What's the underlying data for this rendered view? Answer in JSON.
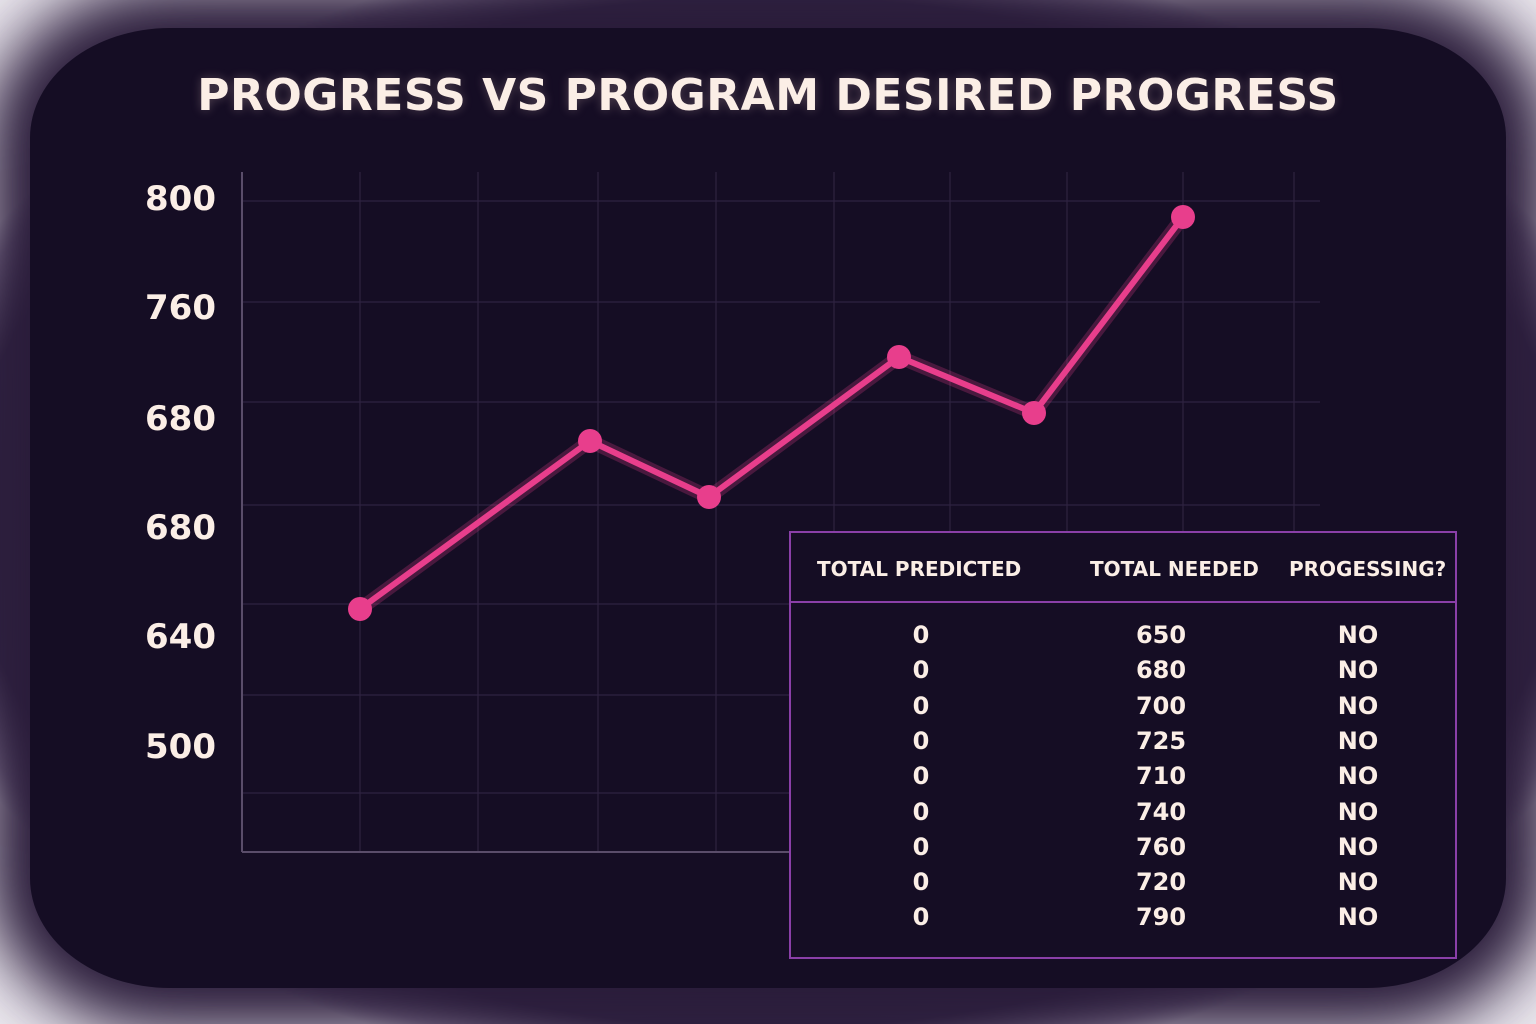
{
  "chart_data": {
    "type": "line",
    "title": "PROGRESS VS PROGRAM DESIRED PROGRESS",
    "y_tick_labels": [
      "800",
      "760",
      "680",
      "680",
      "640",
      "500"
    ],
    "series": [
      {
        "values": [
          650,
          710,
          690,
          740,
          720,
          790
        ]
      }
    ],
    "grid": true,
    "line_color": "#e83e8c"
  },
  "table": {
    "headers": [
      "TOTAL PREDICTED",
      "TOTAL NEEDED",
      "PROGESSING?"
    ],
    "rows": [
      [
        "0",
        "650",
        "NO"
      ],
      [
        "0",
        "680",
        "NO"
      ],
      [
        "0",
        "700",
        "NO"
      ],
      [
        "0",
        "725",
        "NO"
      ],
      [
        "0",
        "710",
        "NO"
      ],
      [
        "0",
        "740",
        "NO"
      ],
      [
        "0",
        "760",
        "NO"
      ],
      [
        "0",
        "720",
        "NO"
      ],
      [
        "0",
        "790",
        "NO"
      ]
    ]
  }
}
